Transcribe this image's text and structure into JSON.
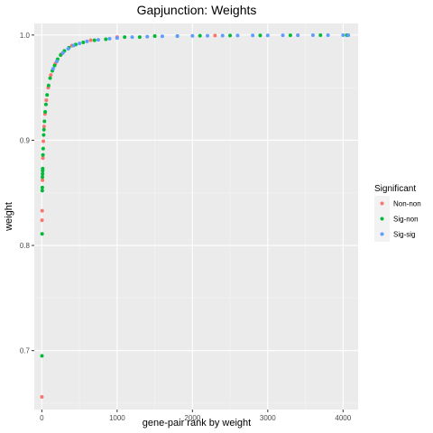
{
  "chart_data": {
    "type": "scatter",
    "title": "Gapjunction: Weights",
    "xlabel": "gene-pair rank by weight",
    "ylabel": "weight",
    "xlim": [
      -100,
      4200
    ],
    "ylim": [
      0.644,
      1.011
    ],
    "x_ticks": [
      0,
      1000,
      2000,
      3000,
      4000
    ],
    "x_tick_labels": [
      "0",
      "1000",
      "2000",
      "3000",
      "4000"
    ],
    "y_ticks": [
      0.7,
      0.8,
      0.9,
      1.0
    ],
    "y_tick_labels": [
      "0.7",
      "0.8",
      "0.9",
      "1.0"
    ],
    "grid": true,
    "legend": {
      "title": "Significant",
      "position": "right",
      "entries": [
        {
          "label": "Non-non",
          "color": "#F8766D"
        },
        {
          "label": "Sig-non",
          "color": "#00BA38"
        },
        {
          "label": "Sig-sig",
          "color": "#619CFF"
        }
      ]
    },
    "series": [
      {
        "name": "Non-non",
        "color": "#F8766D",
        "points": [
          [
            1,
            0.656
          ],
          [
            3,
            0.824
          ],
          [
            5,
            0.833
          ],
          [
            9,
            0.862
          ],
          [
            14,
            0.883
          ],
          [
            20,
            0.899
          ],
          [
            30,
            0.913
          ],
          [
            42,
            0.925
          ],
          [
            60,
            0.938
          ],
          [
            85,
            0.95
          ],
          [
            120,
            0.962
          ],
          [
            180,
            0.973
          ],
          [
            260,
            0.982
          ],
          [
            400,
            0.99
          ],
          [
            650,
            0.995
          ],
          [
            1000,
            0.998
          ],
          [
            1500,
            0.999
          ],
          [
            2300,
            0.9995
          ],
          [
            3400,
            0.9998
          ]
        ]
      },
      {
        "name": "Sig-non",
        "color": "#00BA38",
        "points": [
          [
            2,
            0.695
          ],
          [
            4,
            0.811
          ],
          [
            6,
            0.852
          ],
          [
            7,
            0.855
          ],
          [
            8,
            0.865
          ],
          [
            10,
            0.868
          ],
          [
            11,
            0.871
          ],
          [
            12,
            0.873
          ],
          [
            15,
            0.886
          ],
          [
            18,
            0.892
          ],
          [
            24,
            0.905
          ],
          [
            28,
            0.91
          ],
          [
            35,
            0.918
          ],
          [
            45,
            0.927
          ],
          [
            55,
            0.934
          ],
          [
            70,
            0.943
          ],
          [
            90,
            0.952
          ],
          [
            110,
            0.959
          ],
          [
            140,
            0.966
          ],
          [
            170,
            0.971
          ],
          [
            210,
            0.977
          ],
          [
            250,
            0.981
          ],
          [
            300,
            0.985
          ],
          [
            360,
            0.988
          ],
          [
            450,
            0.991
          ],
          [
            550,
            0.993
          ],
          [
            700,
            0.995
          ],
          [
            850,
            0.996
          ],
          [
            1100,
            0.998
          ],
          [
            1300,
            0.998
          ],
          [
            1500,
            0.999
          ],
          [
            1800,
            0.999
          ],
          [
            2100,
            0.9993
          ],
          [
            2500,
            0.9995
          ],
          [
            2900,
            0.9996
          ],
          [
            3300,
            0.9997
          ],
          [
            3700,
            0.9998
          ],
          [
            4050,
            0.9999
          ]
        ]
      },
      {
        "name": "Sig-sig",
        "color": "#619CFF",
        "points": [
          [
            150,
            0.968
          ],
          [
            200,
            0.975
          ],
          [
            280,
            0.983
          ],
          [
            350,
            0.987
          ],
          [
            420,
            0.99
          ],
          [
            500,
            0.992
          ],
          [
            600,
            0.994
          ],
          [
            750,
            0.9955
          ],
          [
            900,
            0.9965
          ],
          [
            1000,
            0.9972
          ],
          [
            1200,
            0.998
          ],
          [
            1400,
            0.9985
          ],
          [
            1600,
            0.9988
          ],
          [
            1800,
            0.999
          ],
          [
            2000,
            0.9992
          ],
          [
            2200,
            0.9993
          ],
          [
            2400,
            0.9994
          ],
          [
            2600,
            0.9995
          ],
          [
            2800,
            0.9996
          ],
          [
            3000,
            0.9996
          ],
          [
            3200,
            0.9997
          ],
          [
            3400,
            0.9997
          ],
          [
            3600,
            0.9998
          ],
          [
            3800,
            0.9998
          ],
          [
            4000,
            0.9999
          ],
          [
            4070,
            0.9999
          ]
        ]
      }
    ]
  }
}
